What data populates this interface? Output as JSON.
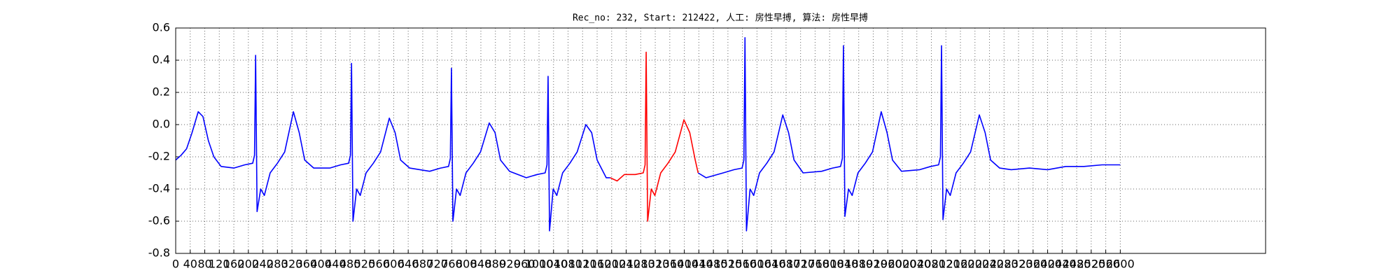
{
  "chart_data": {
    "type": "line",
    "title": "Rec_no: 232, Start: 212422, 人工: 房性早搏, 算法: 房性早搏",
    "xlim": [
      0,
      3000
    ],
    "ylim": [
      -0.8,
      0.6
    ],
    "xticks": [
      0,
      40,
      80,
      120,
      160,
      200,
      240,
      280,
      320,
      360,
      400,
      440,
      480,
      520,
      560,
      600,
      640,
      680,
      720,
      760,
      800,
      840,
      880,
      920,
      960,
      1000,
      1040,
      1080,
      1120,
      1160,
      1200,
      1240,
      1280,
      1320,
      1360,
      1400,
      1440,
      1480,
      1520,
      1560,
      1600,
      1640,
      1680,
      1720,
      1760,
      1800,
      1840,
      1880,
      1920,
      1960,
      2000,
      2040,
      2080,
      2120,
      2160,
      2200,
      2240,
      2280,
      2320,
      2360,
      2400,
      2440,
      2480,
      2520,
      2560,
      2600
    ],
    "yticks": [
      -0.8,
      -0.6,
      -0.4,
      -0.2,
      {
        "value": 0,
        "label": "0.0"
      },
      0.2,
      0.4,
      0.6
    ],
    "grid": true,
    "series": [
      {
        "color": "#0000ff",
        "x": [
          0,
          15,
          30,
          45,
          62,
          75,
          90,
          105,
          125,
          160,
          190,
          212,
          217,
          220,
          224,
          234,
          244,
          260,
          280,
          300,
          324,
          340,
          355,
          380,
          424,
          454,
          476,
          481,
          484,
          488,
          498,
          508,
          524,
          544,
          564,
          588,
          604,
          619,
          644,
          699,
          729,
          751,
          756,
          759,
          763,
          773,
          783,
          799,
          819,
          839,
          863,
          879,
          894,
          919,
          965,
          995,
          1017,
          1022,
          1025,
          1029,
          1039,
          1049,
          1065,
          1085,
          1105,
          1129,
          1145,
          1160,
          1185,
          1196,
          1300,
          1438,
          1460,
          1507,
          1537,
          1559,
          1564,
          1567,
          1571,
          1581,
          1591,
          1607,
          1627,
          1647,
          1671,
          1687,
          1702,
          1727,
          1778,
          1808,
          1830,
          1835,
          1838,
          1842,
          1852,
          1862,
          1878,
          1898,
          1918,
          1942,
          1958,
          1973,
          1998,
          2048,
          2078,
          2100,
          2105,
          2108,
          2112,
          2122,
          2132,
          2148,
          2168,
          2188,
          2212,
          2228,
          2243,
          2268,
          2300,
          2350,
          2400,
          2450,
          2500,
          2550,
          2600
        ],
        "values": [
          -0.22,
          -0.19,
          -0.15,
          -0.05,
          0.08,
          0.05,
          -0.1,
          -0.2,
          -0.26,
          -0.27,
          -0.25,
          -0.24,
          -0.19,
          0.43,
          -0.54,
          -0.4,
          -0.44,
          -0.3,
          -0.24,
          -0.17,
          0.08,
          -0.05,
          -0.22,
          -0.27,
          -0.27,
          -0.25,
          -0.24,
          -0.19,
          0.38,
          -0.6,
          -0.4,
          -0.44,
          -0.3,
          -0.24,
          -0.17,
          0.04,
          -0.05,
          -0.22,
          -0.27,
          -0.29,
          -0.27,
          -0.26,
          -0.21,
          0.35,
          -0.6,
          -0.4,
          -0.44,
          -0.3,
          -0.24,
          -0.17,
          0.01,
          -0.05,
          -0.22,
          -0.29,
          -0.33,
          -0.31,
          -0.3,
          -0.25,
          0.3,
          -0.66,
          -0.4,
          -0.44,
          -0.3,
          -0.24,
          -0.17,
          0,
          -0.05,
          -0.22,
          -0.33,
          -0.33,
          null,
          -0.3,
          -0.33,
          -0.3,
          -0.28,
          -0.27,
          -0.22,
          0.54,
          -0.66,
          -0.4,
          -0.44,
          -0.3,
          -0.24,
          -0.17,
          0.06,
          -0.05,
          -0.22,
          -0.3,
          -0.29,
          -0.27,
          -0.26,
          -0.21,
          0.49,
          -0.57,
          -0.4,
          -0.44,
          -0.3,
          -0.24,
          -0.17,
          0.08,
          -0.05,
          -0.22,
          -0.29,
          -0.28,
          -0.26,
          -0.25,
          -0.2,
          0.49,
          -0.59,
          -0.4,
          -0.44,
          -0.3,
          -0.24,
          -0.17,
          0.06,
          -0.05,
          -0.22,
          -0.27,
          -0.28,
          -0.27,
          -0.28,
          -0.26,
          -0.26,
          -0.25,
          -0.25
        ]
      },
      {
        "color": "#ff0000",
        "x": [
          1196,
          1215,
          1235,
          1265,
          1287,
          1292,
          1295,
          1299,
          1309,
          1319,
          1335,
          1355,
          1375,
          1399,
          1415,
          1430,
          1438
        ],
        "values": [
          -0.33,
          -0.35,
          -0.31,
          -0.31,
          -0.3,
          -0.25,
          0.45,
          -0.6,
          -0.4,
          -0.44,
          -0.3,
          -0.24,
          -0.17,
          0.03,
          -0.05,
          -0.22,
          -0.3
        ]
      }
    ]
  }
}
